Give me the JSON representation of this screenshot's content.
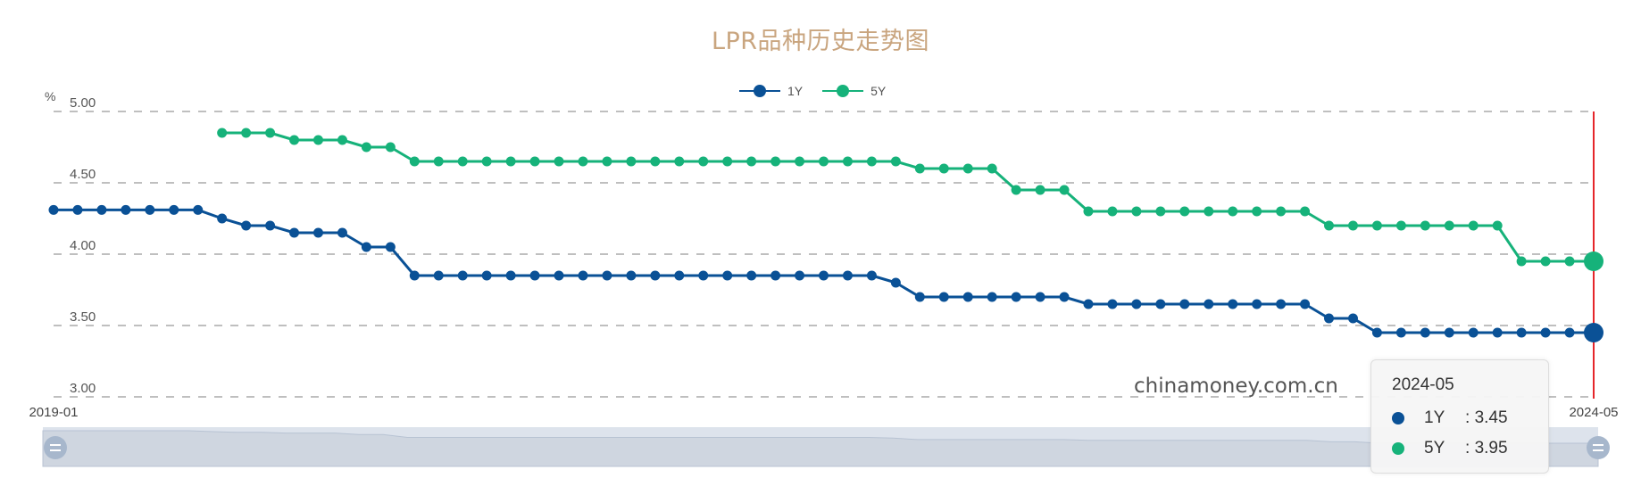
{
  "chart_data": {
    "type": "line",
    "title": "LPR品种历史走势图",
    "ylabel": "%",
    "xlabel": "",
    "ylim": [
      3.0,
      5.0
    ],
    "yticks": [
      "5.00",
      "4.50",
      "4.00",
      "3.50",
      "3.00"
    ],
    "ytick_values": [
      5.0,
      4.5,
      4.0,
      3.5,
      3.0
    ],
    "x_tick_labels_visible": [
      "2019-01",
      "2024-05"
    ],
    "grid": "horizontal dashed",
    "legend_position": "top-center",
    "x": [
      "2019-01",
      "2019-02",
      "2019-03",
      "2019-04",
      "2019-05",
      "2019-06",
      "2019-07",
      "2019-08",
      "2019-09",
      "2019-10",
      "2019-11",
      "2019-12",
      "2020-01",
      "2020-02",
      "2020-03",
      "2020-04",
      "2020-05",
      "2020-06",
      "2020-07",
      "2020-08",
      "2020-09",
      "2020-10",
      "2020-11",
      "2020-12",
      "2021-01",
      "2021-02",
      "2021-03",
      "2021-04",
      "2021-05",
      "2021-06",
      "2021-07",
      "2021-08",
      "2021-09",
      "2021-10",
      "2021-11",
      "2021-12",
      "2022-01",
      "2022-02",
      "2022-03",
      "2022-04",
      "2022-05",
      "2022-06",
      "2022-07",
      "2022-08",
      "2022-09",
      "2022-10",
      "2022-11",
      "2022-12",
      "2023-01",
      "2023-02",
      "2023-03",
      "2023-04",
      "2023-05",
      "2023-06",
      "2023-07",
      "2023-08",
      "2023-09",
      "2023-10",
      "2023-11",
      "2023-12",
      "2024-01",
      "2024-02",
      "2024-03",
      "2024-04",
      "2024-05"
    ],
    "series": [
      {
        "name": "1Y",
        "color": "#0a5196",
        "values": [
          4.31,
          4.31,
          4.31,
          4.31,
          4.31,
          4.31,
          4.31,
          4.25,
          4.2,
          4.2,
          4.15,
          4.15,
          4.15,
          4.05,
          4.05,
          3.85,
          3.85,
          3.85,
          3.85,
          3.85,
          3.85,
          3.85,
          3.85,
          3.85,
          3.85,
          3.85,
          3.85,
          3.85,
          3.85,
          3.85,
          3.85,
          3.85,
          3.85,
          3.85,
          3.85,
          3.8,
          3.7,
          3.7,
          3.7,
          3.7,
          3.7,
          3.7,
          3.7,
          3.65,
          3.65,
          3.65,
          3.65,
          3.65,
          3.65,
          3.65,
          3.65,
          3.65,
          3.65,
          3.55,
          3.55,
          3.45,
          3.45,
          3.45,
          3.45,
          3.45,
          3.45,
          3.45,
          3.45,
          3.45,
          3.45
        ]
      },
      {
        "name": "5Y",
        "color": "#16b27a",
        "values": [
          null,
          null,
          null,
          null,
          null,
          null,
          null,
          4.85,
          4.85,
          4.85,
          4.8,
          4.8,
          4.8,
          4.75,
          4.75,
          4.65,
          4.65,
          4.65,
          4.65,
          4.65,
          4.65,
          4.65,
          4.65,
          4.65,
          4.65,
          4.65,
          4.65,
          4.65,
          4.65,
          4.65,
          4.65,
          4.65,
          4.65,
          4.65,
          4.65,
          4.65,
          4.6,
          4.6,
          4.6,
          4.6,
          4.45,
          4.45,
          4.45,
          4.3,
          4.3,
          4.3,
          4.3,
          4.3,
          4.3,
          4.3,
          4.3,
          4.3,
          4.3,
          4.2,
          4.2,
          4.2,
          4.2,
          4.2,
          4.2,
          4.2,
          4.2,
          3.95,
          3.95,
          3.95,
          3.95
        ]
      }
    ]
  },
  "page": {
    "title": "LPR品种历史走势图",
    "y_unit": "%",
    "watermark": "chinamoney.com.cn",
    "legend": [
      {
        "label": "1Y",
        "color": "#0a5196"
      },
      {
        "label": "5Y",
        "color": "#16b27a"
      }
    ],
    "x_start_label": "2019-01",
    "x_end_label": "2024-05",
    "axis_pointer_color": "#e5262b",
    "tooltip": {
      "date": "2024-05",
      "rows": [
        {
          "name": "1Y",
          "sep": ":",
          "value": "3.45",
          "color": "#0a5196"
        },
        {
          "name": "5Y",
          "sep": ":",
          "value": "3.95",
          "color": "#16b27a"
        }
      ]
    },
    "data_zoom": {
      "start_label": "2019-01",
      "end_label": "2024-05"
    }
  }
}
